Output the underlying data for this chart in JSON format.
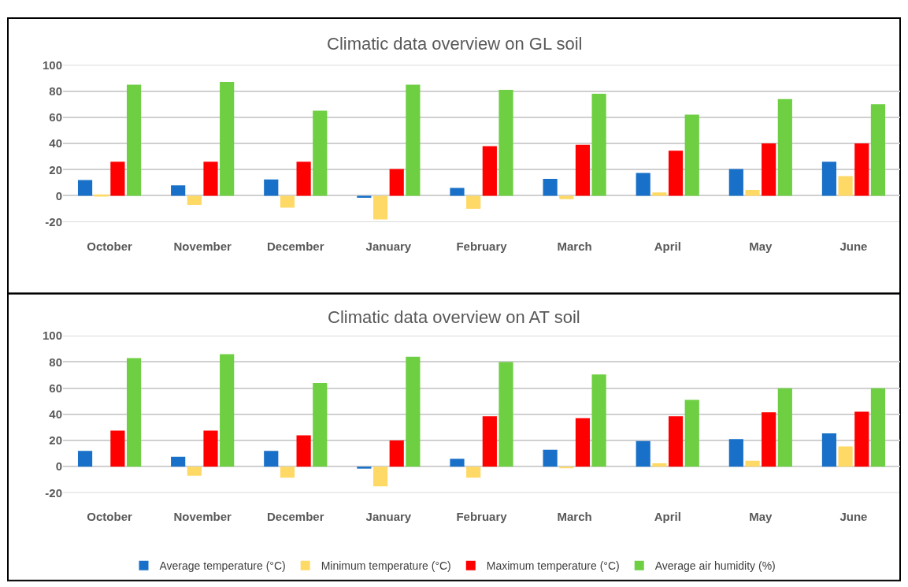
{
  "chart_data": [
    {
      "type": "bar",
      "title": "Climatic data overview on GL soil",
      "categories": [
        "October",
        "November",
        "December",
        "January",
        "February",
        "March",
        "April",
        "May",
        "June"
      ],
      "series": [
        {
          "color": "#1870c8",
          "values": [
            12,
            8,
            12.5,
            -1.5,
            6,
            13,
            17.5,
            20.5,
            26
          ]
        },
        {
          "color": "#ffd966",
          "values": [
            1,
            -7,
            -9,
            -18,
            -10,
            -2.5,
            2.5,
            4.5,
            15
          ]
        },
        {
          "color": "#ff0000",
          "values": [
            26,
            26,
            26,
            20.5,
            38,
            39,
            34.5,
            40,
            40
          ]
        },
        {
          "color": "#6dcf41",
          "values": [
            85,
            87,
            65,
            85,
            81,
            78,
            62,
            74,
            70
          ]
        }
      ],
      "ylim": [
        -20,
        100
      ],
      "yticks": [
        -20,
        0,
        20,
        40,
        60,
        80,
        100
      ],
      "grid": "y"
    },
    {
      "type": "bar",
      "title": "Climatic data overview on AT soil",
      "categories": [
        "October",
        "November",
        "December",
        "January",
        "February",
        "March",
        "April",
        "May",
        "June"
      ],
      "series": [
        {
          "name": "Average temperature (°C)",
          "color": "#1870c8",
          "values": [
            12,
            7.5,
            12,
            -1.5,
            6,
            13,
            19.5,
            21,
            25.5
          ]
        },
        {
          "name": "Minimum temperature (°C)",
          "color": "#ffd966",
          "values": [
            0,
            -7,
            -8.5,
            -15,
            -8.5,
            -1,
            2.5,
            4.5,
            15.5
          ]
        },
        {
          "name": "Maximum temperature (°C)",
          "color": "#ff0000",
          "values": [
            27.5,
            27.5,
            24,
            20,
            38.5,
            37,
            38.5,
            41.5,
            42
          ]
        },
        {
          "name": "Average air humidity (%)",
          "color": "#6dcf41",
          "values": [
            83,
            86,
            64,
            84,
            80,
            70.5,
            51,
            60,
            60
          ]
        }
      ],
      "ylim": [
        -20,
        100
      ],
      "yticks": [
        -20,
        0,
        20,
        40,
        60,
        80,
        100
      ],
      "grid": "y",
      "legend": "bottom"
    }
  ]
}
